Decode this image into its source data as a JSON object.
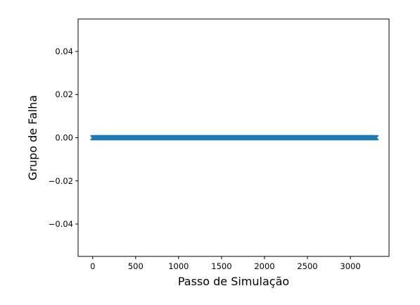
{
  "chart_data": {
    "type": "scatter",
    "title": "",
    "xlabel": "Passo de Simulação",
    "ylabel": "Grupo de Falha",
    "xlim": [
      -170,
      3450
    ],
    "ylim": [
      -0.055,
      0.055
    ],
    "grid": false,
    "x_ticks": [
      0,
      500,
      1000,
      1500,
      2000,
      2500,
      3000
    ],
    "x_tick_labels": [
      "0",
      "500",
      "1000",
      "1500",
      "2000",
      "2500",
      "3000"
    ],
    "y_ticks": [
      -0.04,
      -0.02,
      0.0,
      0.02,
      0.04
    ],
    "y_tick_labels": [
      "−0.04",
      "−0.02",
      "0.00",
      "0.02",
      "0.04"
    ],
    "series": [
      {
        "color": "#1f77b4",
        "marker": "x",
        "x_range": [
          0,
          3300
        ],
        "x_step": 1,
        "y": 0
      }
    ]
  }
}
